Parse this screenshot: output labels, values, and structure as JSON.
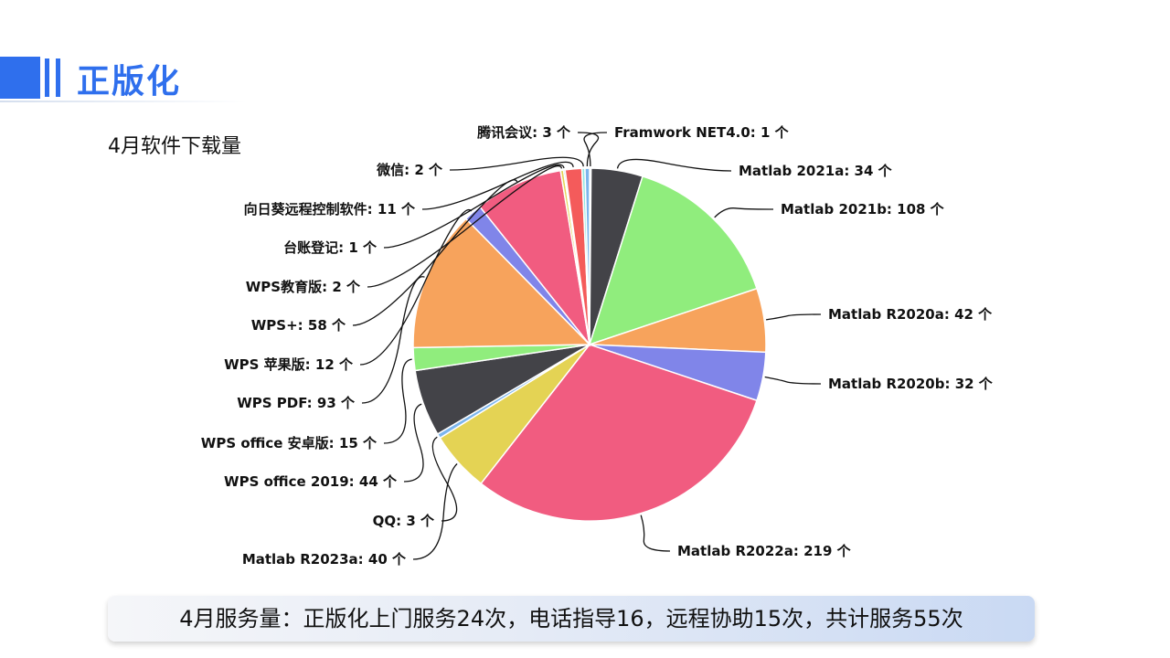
{
  "header": {
    "title": "正版化"
  },
  "footer": {
    "summary": "4月服务量：正版化上门服务24次，电话指导16，远程协助15次，共计服务55次"
  },
  "chart_data": {
    "type": "pie",
    "title": "4月软件下载量",
    "unit": "个",
    "slices": [
      {
        "name": "Framwork NET4.0",
        "value": 1,
        "color": "#9ecae1"
      },
      {
        "name": "Matlab 2021a",
        "value": 34,
        "color": "#434348"
      },
      {
        "name": "Matlab 2021b",
        "value": 108,
        "color": "#90ed7d"
      },
      {
        "name": "Matlab R2020a",
        "value": 42,
        "color": "#f7a35c"
      },
      {
        "name": "Matlab R2020b",
        "value": 32,
        "color": "#8085e9"
      },
      {
        "name": "Matlab R2022a",
        "value": 219,
        "color": "#f15c80"
      },
      {
        "name": "Matlab R2023a",
        "value": 40,
        "color": "#e4d354"
      },
      {
        "name": "QQ",
        "value": 3,
        "color": "#7cb5ec"
      },
      {
        "name": "WPS office 2019",
        "value": 44,
        "color": "#434348"
      },
      {
        "name": "WPS office 安卓版",
        "value": 15,
        "color": "#90ed7d"
      },
      {
        "name": "WPS PDF",
        "value": 93,
        "color": "#f7a35c"
      },
      {
        "name": "WPS 苹果版",
        "value": 12,
        "color": "#8085e9"
      },
      {
        "name": "WPS+",
        "value": 58,
        "color": "#f15c80"
      },
      {
        "name": "WPS教育版",
        "value": 2,
        "color": "#e4d354"
      },
      {
        "name": "台账登记",
        "value": 1,
        "color": "#2b908f"
      },
      {
        "name": "向日葵远程控制软件",
        "value": 11,
        "color": "#f45b5b"
      },
      {
        "name": "微信",
        "value": 2,
        "color": "#91e8e1"
      },
      {
        "name": "腾讯会议",
        "value": 3,
        "color": "#7cb5ec"
      }
    ]
  }
}
